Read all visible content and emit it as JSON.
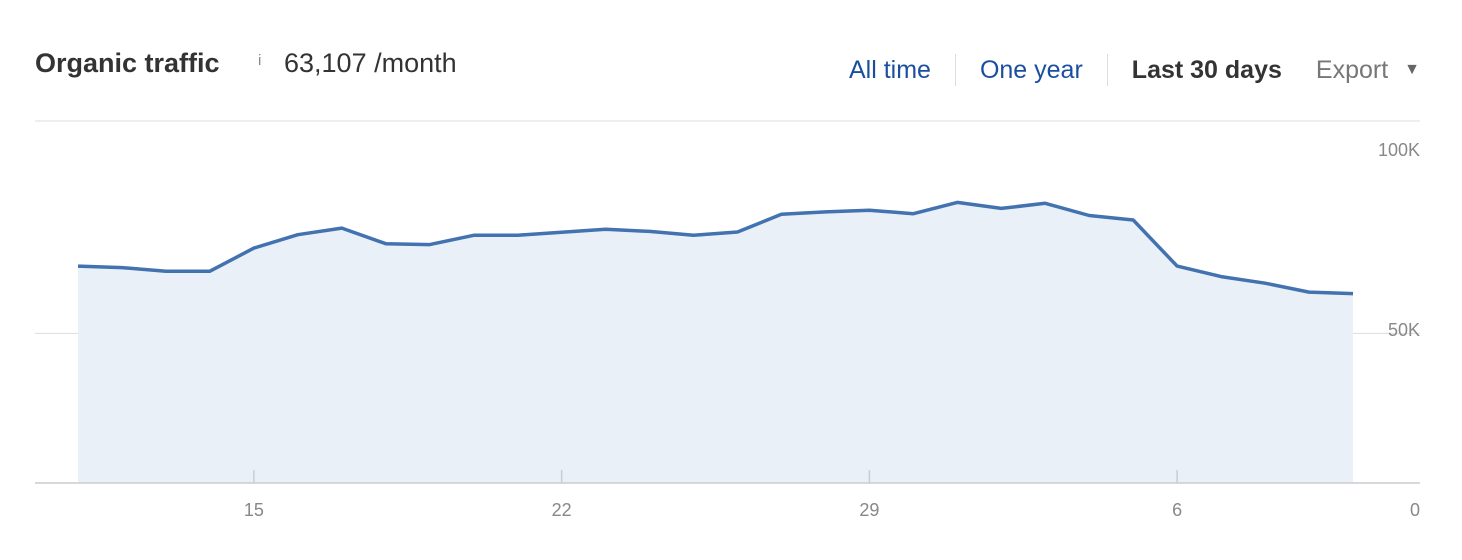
{
  "header": {
    "title": "Organic traffic",
    "info_glyph": "i",
    "value": "63,107 /month"
  },
  "controls": {
    "tabs": [
      {
        "label": "All time",
        "active": false
      },
      {
        "label": "One year",
        "active": false
      },
      {
        "label": "Last 30 days",
        "active": true
      }
    ],
    "export_label": "Export",
    "export_icon": "caret-down-icon"
  },
  "colors": {
    "line": "#4272b0",
    "fill": "#eaf0f8",
    "grid": "#dddddd",
    "active_tab": "#333333",
    "link": "#1a4fa0"
  },
  "chart_data": {
    "type": "area",
    "title": "",
    "xlabel": "",
    "ylabel": "",
    "x_ticks": [
      {
        "label": "15",
        "index": 4
      },
      {
        "label": "22",
        "index": 11
      },
      {
        "label": "29",
        "index": 18
      },
      {
        "label": "6",
        "index": 25
      }
    ],
    "y_ticks": [
      {
        "label": "100K",
        "value": 100000
      },
      {
        "label": "50K",
        "value": 50000
      },
      {
        "label": "0",
        "value": 0
      }
    ],
    "ylim": [
      0,
      100000
    ],
    "grid": true,
    "series": [
      {
        "values": [
          72500,
          72000,
          70800,
          70800,
          78500,
          83000,
          85200,
          80000,
          79700,
          82800,
          82800,
          83800,
          84800,
          84100,
          82800,
          83900,
          89800,
          90600,
          91200,
          90000,
          93800,
          91800,
          93500,
          89400,
          87900,
          72500,
          69000,
          66800,
          63800,
          63300
        ]
      }
    ]
  }
}
